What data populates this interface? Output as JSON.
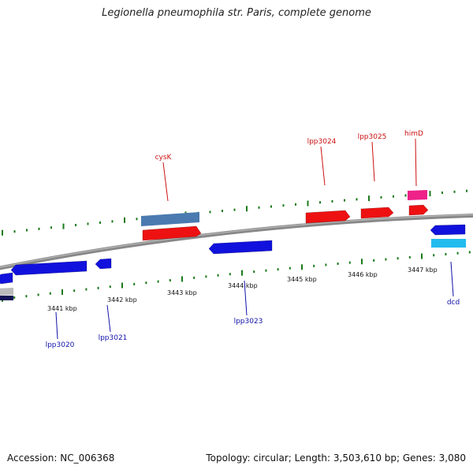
{
  "title": "Legionella pneumophila str. Paris, complete genome",
  "footer": {
    "accession": "Accession: NC_006368",
    "summary": "Topology: circular; Length: 3,503,610 bp; Genes: 3,080"
  },
  "colors": {
    "forward": "#ee1111",
    "reverse": "#1111dd",
    "forward_label": "#cc1111",
    "reverse_label": "#1111aa",
    "tick": "#1a7a1a",
    "backbone": "#888888"
  },
  "scale": {
    "ticks": [
      "3441 kbp",
      "3442 kbp",
      "3443 kbp",
      "3444 kbp",
      "3445 kbp",
      "3446 kbp",
      "3447 kbp"
    ]
  },
  "genes": [
    {
      "name": "cysK",
      "strand": "forward",
      "color": "#4a7ab0"
    },
    {
      "name": "",
      "strand": "forward",
      "color": "#ee1111"
    },
    {
      "name": "lpp3024",
      "strand": "forward",
      "color": "#ee1111"
    },
    {
      "name": "lpp3025",
      "strand": "forward",
      "color": "#ee1111"
    },
    {
      "name": "himD",
      "strand": "forward",
      "color": "#ee2288"
    },
    {
      "name": "",
      "strand": "forward",
      "color": "#ee1111"
    },
    {
      "name": "lpp3020",
      "strand": "reverse",
      "color": "#1111dd"
    },
    {
      "name": "lpp3021",
      "strand": "reverse",
      "color": "#1111dd"
    },
    {
      "name": "lpp3023",
      "strand": "reverse",
      "color": "#1111dd"
    },
    {
      "name": "dcd",
      "strand": "reverse",
      "color": "#1111dd"
    },
    {
      "name": "",
      "strand": "reverse",
      "color": "#22bbee"
    }
  ]
}
